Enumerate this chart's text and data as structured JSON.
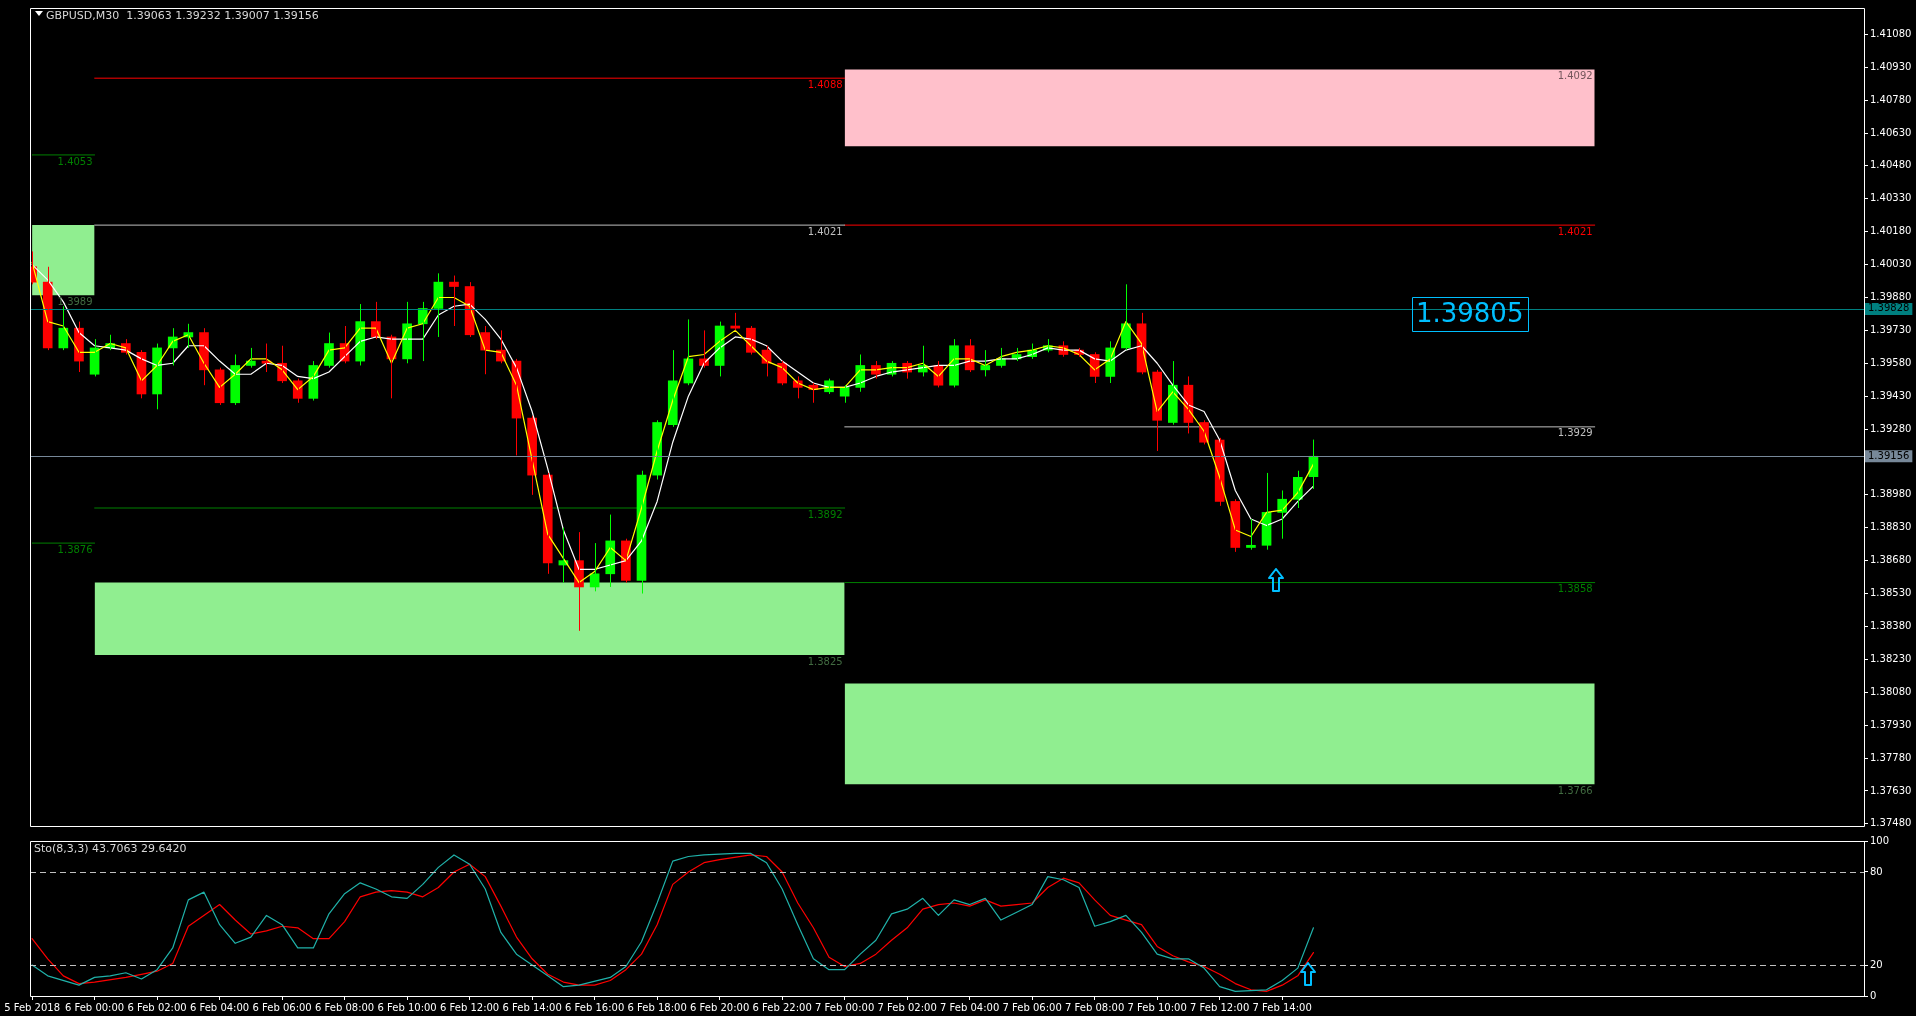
{
  "chart_data": [
    {
      "type": "candlestick",
      "title": "GBPUSD,M30  1.39063 1.39232 1.39007 1.39156",
      "x": [
        "2018-02-05T22:00",
        "2018-02-05T22:30",
        "2018-02-05T23:00",
        "2018-02-05T23:30",
        "2018-02-06T00:00",
        "2018-02-06T00:30",
        "2018-02-06T01:00",
        "2018-02-06T01:30",
        "2018-02-06T02:00",
        "2018-02-06T02:30",
        "2018-02-06T03:00",
        "2018-02-06T03:30",
        "2018-02-06T04:00",
        "2018-02-06T04:30",
        "2018-02-06T05:00",
        "2018-02-06T05:30",
        "2018-02-06T06:00",
        "2018-02-06T06:30",
        "2018-02-06T07:00",
        "2018-02-06T07:30",
        "2018-02-06T08:00",
        "2018-02-06T08:30",
        "2018-02-06T09:00",
        "2018-02-06T09:30",
        "2018-02-06T10:00",
        "2018-02-06T10:30",
        "2018-02-06T11:00",
        "2018-02-06T11:30",
        "2018-02-06T12:00",
        "2018-02-06T12:30",
        "2018-02-06T13:00",
        "2018-02-06T13:30",
        "2018-02-06T14:00",
        "2018-02-06T14:30",
        "2018-02-06T15:00",
        "2018-02-06T15:30",
        "2018-02-06T16:00",
        "2018-02-06T16:30",
        "2018-02-06T17:00",
        "2018-02-06T17:30",
        "2018-02-06T18:00",
        "2018-02-06T18:30",
        "2018-02-06T19:00",
        "2018-02-06T19:30",
        "2018-02-06T20:00",
        "2018-02-06T20:30",
        "2018-02-06T21:00",
        "2018-02-06T21:30",
        "2018-02-06T22:00",
        "2018-02-06T22:30",
        "2018-02-06T23:00",
        "2018-02-06T23:30",
        "2018-02-07T00:00",
        "2018-02-07T00:30",
        "2018-02-07T01:00",
        "2018-02-07T01:30",
        "2018-02-07T02:00",
        "2018-02-07T02:30",
        "2018-02-07T03:00",
        "2018-02-07T03:30",
        "2018-02-07T04:00",
        "2018-02-07T04:30",
        "2018-02-07T05:00",
        "2018-02-07T05:30",
        "2018-02-07T06:00",
        "2018-02-07T06:30",
        "2018-02-07T07:00",
        "2018-02-07T07:30",
        "2018-02-07T08:00",
        "2018-02-07T08:30",
        "2018-02-07T09:00",
        "2018-02-07T09:30",
        "2018-02-07T10:00",
        "2018-02-07T10:30",
        "2018-02-07T11:00",
        "2018-02-07T11:30",
        "2018-02-07T12:00",
        "2018-02-07T12:30",
        "2018-02-07T13:00",
        "2018-02-07T13:30",
        "2018-02-07T14:00",
        "2018-02-07T14:30",
        "2018-02-07T15:00"
      ],
      "xlim": [
        "2018-02-05T21:56",
        "2018-02-08T08:37"
      ],
      "ylim": [
        1.3747,
        1.412
      ],
      "yticks": [
        {
          "value": 1.4108,
          "label": "1.41080"
        },
        {
          "value": 1.4093,
          "label": "1.40930"
        },
        {
          "value": 1.4078,
          "label": "1.40780"
        },
        {
          "value": 1.4063,
          "label": "1.40630"
        },
        {
          "value": 1.4048,
          "label": "1.40480"
        },
        {
          "value": 1.4033,
          "label": "1.40330"
        },
        {
          "value": 1.4018,
          "label": "1.40180"
        },
        {
          "value": 1.4003,
          "label": "1.40030"
        },
        {
          "value": 1.3988,
          "label": "1.39880"
        },
        {
          "value": 1.3973,
          "label": "1.39730"
        },
        {
          "value": 1.3958,
          "label": "1.39580"
        },
        {
          "value": 1.3943,
          "label": "1.39430"
        },
        {
          "value": 1.3928,
          "label": "1.39280"
        },
        {
          "value": 1.3898,
          "label": "1.38980"
        },
        {
          "value": 1.3883,
          "label": "1.38830"
        },
        {
          "value": 1.3868,
          "label": "1.38680"
        },
        {
          "value": 1.3853,
          "label": "1.38530"
        },
        {
          "value": 1.3838,
          "label": "1.38380"
        },
        {
          "value": 1.3823,
          "label": "1.38230"
        },
        {
          "value": 1.3808,
          "label": "1.38080"
        },
        {
          "value": 1.3793,
          "label": "1.37930"
        },
        {
          "value": 1.3778,
          "label": "1.37780"
        },
        {
          "value": 1.3763,
          "label": "1.37630"
        },
        {
          "value": 1.3748,
          "label": "1.37480"
        }
      ],
      "tick_labels": "y",
      "series": [
        {
          "type": "line",
          "x": [
            "2018-02-05T22:00",
            "2018-02-06T00:00"
          ],
          "values": [
            null,
            null
          ],
          "upper": [
            1.4021,
            1.4021
          ],
          "lower": [
            1.3989,
            1.3989
          ],
          "color": "#90ee90"
        },
        {
          "type": "line",
          "x": [
            "2018-02-06T00:00",
            "2018-02-07T00:00"
          ],
          "values": [
            null,
            null
          ],
          "upper": [
            1.3858,
            1.3858
          ],
          "lower": [
            1.3825,
            1.3825
          ],
          "color": "#90ee90"
        },
        {
          "type": "line",
          "x": [
            "2018-02-07T00:00",
            "2018-02-08T00:00"
          ],
          "values": [
            null,
            null
          ],
          "upper": [
            1.4092,
            1.4092
          ],
          "lower": [
            1.4057,
            1.4057
          ],
          "color": "#ffc0cb"
        },
        {
          "type": "line",
          "x": [
            "2018-02-07T00:00",
            "2018-02-08T00:00"
          ],
          "values": [
            null,
            null
          ],
          "upper": [
            1.3812,
            1.3812
          ],
          "lower": [
            1.3766,
            1.3766
          ],
          "color": "#90ee90"
        },
        {
          "type": "line",
          "x": [
            "2018-02-06T00:00",
            "2018-02-07T00:00"
          ],
          "values": [
            1.4088,
            1.4088
          ],
          "color": "#ff0000"
        },
        {
          "type": "line",
          "x": [
            "2018-02-05T22:00",
            "2018-02-06T00:00"
          ],
          "values": [
            1.4053,
            1.4053
          ],
          "color": "#008000"
        },
        {
          "type": "line",
          "x": [
            "2018-02-06T00:00",
            "2018-02-07T00:00"
          ],
          "values": [
            1.4021,
            1.4021
          ],
          "color": "#c0c0c0"
        },
        {
          "type": "line",
          "x": [
            "2018-02-07T00:00",
            "2018-02-08T00:00"
          ],
          "values": [
            1.4021,
            1.4021
          ],
          "color": "#ff0000"
        },
        {
          "type": "line",
          "x": [
            "2018-02-07T00:00",
            "2018-02-08T00:00"
          ],
          "values": [
            1.3929,
            1.3929
          ],
          "color": "#c0c0c0"
        },
        {
          "type": "line",
          "x": [
            "2018-02-06T00:00",
            "2018-02-07T00:00"
          ],
          "values": [
            1.3892,
            1.3892
          ],
          "color": "#008000"
        },
        {
          "type": "line",
          "x": [
            "2018-02-05T22:00",
            "2018-02-06T00:00"
          ],
          "values": [
            1.3876,
            1.3876
          ],
          "color": "#008000"
        },
        {
          "type": "line",
          "x": [
            "2018-02-07T00:00",
            "2018-02-08T00:00"
          ],
          "values": [
            1.3858,
            1.3858
          ],
          "color": "#008000"
        },
        {
          "ohlc": [
            [
              1.4002,
              1.4009,
              1.3994,
              1.3995
            ],
            [
              1.3995,
              1.4002,
              1.3964,
              1.3965
            ],
            [
              1.3965,
              1.3984,
              1.3964,
              1.3974
            ],
            [
              1.3974,
              1.3977,
              1.3954,
              1.3959
            ],
            [
              1.3953,
              1.3969,
              1.3952,
              1.3965
            ],
            [
              1.3965,
              1.3971,
              1.3964,
              1.3967
            ],
            [
              1.3967,
              1.3969,
              1.3962,
              1.3963
            ],
            [
              1.3963,
              1.3964,
              1.3942,
              1.3944
            ],
            [
              1.3944,
              1.3967,
              1.3937,
              1.3965
            ],
            [
              1.3965,
              1.3974,
              1.3957,
              1.397
            ],
            [
              1.397,
              1.3976,
              1.3965,
              1.3972
            ],
            [
              1.3972,
              1.3974,
              1.3948,
              1.3955
            ],
            [
              1.3955,
              1.3956,
              1.3939,
              1.394
            ],
            [
              1.394,
              1.3962,
              1.3939,
              1.3957
            ],
            [
              1.3957,
              1.3965,
              1.3956,
              1.3959
            ],
            [
              1.3959,
              1.3967,
              1.3954,
              1.3958
            ],
            [
              1.3958,
              1.3966,
              1.3949,
              1.395
            ],
            [
              1.395,
              1.3951,
              1.394,
              1.3942
            ],
            [
              1.3942,
              1.3959,
              1.3941,
              1.3957
            ],
            [
              1.3957,
              1.3972,
              1.3956,
              1.3967
            ],
            [
              1.3967,
              1.3975,
              1.3958,
              1.3959
            ],
            [
              1.3959,
              1.3985,
              1.3957,
              1.3977
            ],
            [
              1.3977,
              1.3986,
              1.3969,
              1.397
            ],
            [
              1.397,
              1.3971,
              1.3942,
              1.396
            ],
            [
              1.396,
              1.3986,
              1.3958,
              1.3976
            ],
            [
              1.3976,
              1.3986,
              1.3959,
              1.3983
            ],
            [
              1.3983,
              1.3999,
              1.397,
              1.3995
            ],
            [
              1.3995,
              1.3998,
              1.3975,
              1.3993
            ],
            [
              1.3993,
              1.3995,
              1.397,
              1.3971
            ],
            [
              1.3972,
              1.3975,
              1.3953,
              1.3964
            ],
            [
              1.3964,
              1.3973,
              1.3958,
              1.3959
            ],
            [
              1.3959,
              1.396,
              1.3916,
              1.3933
            ],
            [
              1.3933,
              1.3934,
              1.3898,
              1.3907
            ],
            [
              1.3907,
              1.3908,
              1.3862,
              1.3867
            ],
            [
              1.3866,
              1.3883,
              1.3858,
              1.3868
            ],
            [
              1.3868,
              1.3881,
              1.3836,
              1.3856
            ],
            [
              1.3856,
              1.3876,
              1.3854,
              1.3862
            ],
            [
              1.3862,
              1.3889,
              1.3856,
              1.3877
            ],
            [
              1.3877,
              1.3878,
              1.3858,
              1.3859
            ],
            [
              1.3859,
              1.3909,
              1.3853,
              1.3907
            ],
            [
              1.3907,
              1.3932,
              1.3905,
              1.3931
            ],
            [
              1.393,
              1.3964,
              1.3929,
              1.395
            ],
            [
              1.3949,
              1.3978,
              1.3948,
              1.396
            ],
            [
              1.396,
              1.3973,
              1.3956,
              1.3957
            ],
            [
              1.3957,
              1.3977,
              1.3952,
              1.3975
            ],
            [
              1.3975,
              1.3981,
              1.3973,
              1.3974
            ],
            [
              1.3974,
              1.3975,
              1.3962,
              1.3963
            ],
            [
              1.3964,
              1.3966,
              1.3952,
              1.3958
            ],
            [
              1.3958,
              1.3959,
              1.3948,
              1.3949
            ],
            [
              1.395,
              1.3952,
              1.3942,
              1.3947
            ],
            [
              1.3948,
              1.3949,
              1.394,
              1.3946
            ],
            [
              1.3945,
              1.3951,
              1.3944,
              1.395
            ],
            [
              1.3943,
              1.3948,
              1.394,
              1.3947
            ],
            [
              1.3947,
              1.3962,
              1.3945,
              1.3957
            ],
            [
              1.3957,
              1.3959,
              1.3951,
              1.3953
            ],
            [
              1.3953,
              1.3959,
              1.3952,
              1.3958
            ],
            [
              1.3958,
              1.3959,
              1.3951,
              1.3954
            ],
            [
              1.3954,
              1.3966,
              1.3952,
              1.3957
            ],
            [
              1.3957,
              1.3959,
              1.3947,
              1.3948
            ],
            [
              1.3948,
              1.3969,
              1.3947,
              1.3966
            ],
            [
              1.3966,
              1.3969,
              1.3954,
              1.3955
            ],
            [
              1.3955,
              1.3964,
              1.3952,
              1.3957
            ],
            [
              1.3957,
              1.3965,
              1.3956,
              1.396
            ],
            [
              1.396,
              1.3965,
              1.3959,
              1.3962
            ],
            [
              1.3961,
              1.3967,
              1.396,
              1.3964
            ],
            [
              1.3964,
              1.3969,
              1.3963,
              1.3966
            ],
            [
              1.3966,
              1.3968,
              1.3961,
              1.3962
            ],
            [
              1.3964,
              1.3965,
              1.3961,
              1.3962
            ],
            [
              1.3962,
              1.3963,
              1.3949,
              1.3952
            ],
            [
              1.3952,
              1.3968,
              1.3949,
              1.3965
            ],
            [
              1.3965,
              1.3994,
              1.3964,
              1.3976
            ],
            [
              1.3976,
              1.3981,
              1.3953,
              1.3954
            ],
            [
              1.3954,
              1.3955,
              1.3918,
              1.3932
            ],
            [
              1.3931,
              1.3959,
              1.393,
              1.3948
            ],
            [
              1.3948,
              1.3952,
              1.3926,
              1.3931
            ],
            [
              1.3931,
              1.3932,
              1.3921,
              1.3922
            ],
            [
              1.3923,
              1.3924,
              1.3893,
              1.3895
            ],
            [
              1.3895,
              1.3896,
              1.3872,
              1.3874
            ],
            [
              1.3874,
              1.3887,
              1.3873,
              1.3875
            ],
            [
              1.3875,
              1.3908,
              1.3873,
              1.389
            ],
            [
              1.389,
              1.39,
              1.3878,
              1.3896
            ],
            [
              1.3896,
              1.3909,
              1.3892,
              1.3906
            ],
            [
              1.39063,
              1.39232,
              1.39007,
              1.39156
            ]
          ],
          "colors": [
            "#ff0000",
            "#ff0000",
            "#00ff00",
            "#ff0000",
            "#00ff00",
            "#00ff00",
            "#ff0000",
            "#ff0000",
            "#00ff00",
            "#00ff00",
            "#00ff00",
            "#ff0000",
            "#ff0000",
            "#00ff00",
            "#00ff00",
            "#ff0000",
            "#ff0000",
            "#ff0000",
            "#00ff00",
            "#00ff00",
            "#ff0000",
            "#00ff00",
            "#ff0000",
            "#ff0000",
            "#00ff00",
            "#00ff00",
            "#00ff00",
            "#ff0000",
            "#ff0000",
            "#ff0000",
            "#ff0000",
            "#ff0000",
            "#ff0000",
            "#ff0000",
            "#00ff00",
            "#ff0000",
            "#00ff00",
            "#00ff00",
            "#ff0000",
            "#00ff00",
            "#00ff00",
            "#00ff00",
            "#00ff00",
            "#ff0000",
            "#00ff00",
            "#ff0000",
            "#ff0000",
            "#ff0000",
            "#ff0000",
            "#ff0000",
            "#ff0000",
            "#00ff00",
            "#00ff00",
            "#00ff00",
            "#ff0000",
            "#00ff00",
            "#ff0000",
            "#00ff00",
            "#ff0000",
            "#00ff00",
            "#ff0000",
            "#00ff00",
            "#00ff00",
            "#00ff00",
            "#00ff00",
            "#00ff00",
            "#ff0000",
            "#ff0000",
            "#ff0000",
            "#00ff00",
            "#00ff00",
            "#ff0000",
            "#ff0000",
            "#00ff00",
            "#ff0000",
            "#ff0000",
            "#ff0000",
            "#ff0000",
            "#00ff00",
            "#00ff00",
            "#00ff00",
            "#00ff00",
            "#00ff00"
          ]
        },
        {
          "type": "line",
          "color": "#ffff00",
          "values": [
            1.4004,
            1.3977,
            1.3975,
            1.3963,
            1.3963,
            1.3967,
            1.3965,
            1.395,
            1.3957,
            1.3968,
            1.3971,
            1.3958,
            1.3947,
            1.3953,
            1.396,
            1.396,
            1.3955,
            1.3946,
            1.3952,
            1.3964,
            1.3965,
            1.3974,
            1.3974,
            1.3958,
            1.3974,
            1.3976,
            1.3988,
            1.3988,
            1.3984,
            1.3964,
            1.3963,
            1.3948,
            1.3914,
            1.388,
            1.3869,
            1.3858,
            1.3863,
            1.3874,
            1.3868,
            1.3892,
            1.3918,
            1.3941,
            1.3961,
            1.3962,
            1.3968,
            1.3973,
            1.3966,
            1.3959,
            1.3956,
            1.3949,
            1.3946,
            1.3947,
            1.3947,
            1.3955,
            1.3955,
            1.3956,
            1.3956,
            1.3958,
            1.3952,
            1.396,
            1.396,
            1.3957,
            1.3961,
            1.3963,
            1.3964,
            1.3966,
            1.3965,
            1.3962,
            1.3955,
            1.396,
            1.3977,
            1.3967,
            1.3936,
            1.3945,
            1.3937,
            1.3927,
            1.3906,
            1.3882,
            1.3879,
            1.389,
            1.3891,
            1.3899,
            1.3912
          ]
        },
        {
          "type": "line",
          "color": "#ffffff",
          "values": [
            1.4003,
            1.3996,
            1.3986,
            1.3972,
            1.3966,
            1.3965,
            1.3964,
            1.396,
            1.3957,
            1.3958,
            1.3966,
            1.3966,
            1.3959,
            1.3953,
            1.3953,
            1.3958,
            1.3957,
            1.3952,
            1.3951,
            1.3954,
            1.3961,
            1.3968,
            1.397,
            1.3969,
            1.3969,
            1.3969,
            1.398,
            1.3984,
            1.3985,
            1.3978,
            1.3969,
            1.3956,
            1.3936,
            1.391,
            1.3882,
            1.3864,
            1.3864,
            1.3866,
            1.3868,
            1.3877,
            1.3895,
            1.3922,
            1.3943,
            1.3958,
            1.3965,
            1.397,
            1.3969,
            1.3966,
            1.3959,
            1.3954,
            1.3949,
            1.3947,
            1.3947,
            1.3949,
            1.3952,
            1.3954,
            1.3955,
            1.3956,
            1.3957,
            1.3957,
            1.3959,
            1.3959,
            1.396,
            1.396,
            1.3962,
            1.3965,
            1.3964,
            1.3964,
            1.396,
            1.3959,
            1.3964,
            1.3966,
            1.3958,
            1.3948,
            1.3939,
            1.3936,
            1.3923,
            1.39,
            1.3887,
            1.3884,
            1.3887,
            1.3895,
            1.3902
          ]
        }
      ],
      "ref_lines": [
        {
          "axis": "y",
          "value": 1.39828,
          "label": "1.39828",
          "color": "#008080"
        },
        {
          "axis": "y",
          "value": 1.39156,
          "label": "1.39156",
          "color": "#778899"
        }
      ],
      "annotations": [
        {
          "text": "1.4088",
          "x": "2018-02-07T00:00",
          "y": 1.4088
        },
        {
          "text": "1.4053",
          "x": "2018-02-06T00:00",
          "y": 1.4053
        },
        {
          "text": "1.4021",
          "x": "2018-02-07T00:00",
          "y": 1.4021
        },
        {
          "text": "1.4092",
          "x": "2018-02-08T00:00",
          "y": 1.4092
        },
        {
          "text": "1.4021",
          "x": "2018-02-08T00:00",
          "y": 1.4021
        },
        {
          "text": "1.3989",
          "x": "2018-02-06T00:00",
          "y": 1.3989
        },
        {
          "text": "1.39805",
          "x": "2018-02-07T20:00",
          "y": 1.39805
        },
        {
          "text": "1.3929",
          "x": "2018-02-08T00:00",
          "y": 1.3929
        },
        {
          "text": "1.3892",
          "x": "2018-02-07T00:00",
          "y": 1.3892
        },
        {
          "text": "1.3876",
          "x": "2018-02-06T00:00",
          "y": 1.3876
        },
        {
          "text": "1.3858",
          "x": "2018-02-08T00:00",
          "y": 1.3858
        },
        {
          "text": "1.3825",
          "x": "2018-02-07T00:00",
          "y": 1.3825
        },
        {
          "text": "1.3766",
          "x": "2018-02-08T00:00",
          "y": 1.3766
        }
      ]
    },
    {
      "type": "line",
      "title": "Sto(8,3,3) 43.7063 29.6420",
      "xlim": [
        "2018-02-05T21:56",
        "2018-02-08T08:37"
      ],
      "xticks": [
        {
          "value": "2018-02-05T22:00",
          "label": "5 Feb 2018"
        },
        {
          "value": "2018-02-06T00:00",
          "label": "6 Feb 00:00"
        },
        {
          "value": "2018-02-06T02:00",
          "label": "6 Feb 02:00"
        },
        {
          "value": "2018-02-06T04:00",
          "label": "6 Feb 04:00"
        },
        {
          "value": "2018-02-06T06:00",
          "label": "6 Feb 06:00"
        },
        {
          "value": "2018-02-06T08:00",
          "label": "6 Feb 08:00"
        },
        {
          "value": "2018-02-06T10:00",
          "label": "6 Feb 10:00"
        },
        {
          "value": "2018-02-06T12:00",
          "label": "6 Feb 12:00"
        },
        {
          "value": "2018-02-06T14:00",
          "label": "6 Feb 14:00"
        },
        {
          "value": "2018-02-06T16:00",
          "label": "6 Feb 16:00"
        },
        {
          "value": "2018-02-06T18:00",
          "label": "6 Feb 18:00"
        },
        {
          "value": "2018-02-06T20:00",
          "label": "6 Feb 20:00"
        },
        {
          "value": "2018-02-06T22:00",
          "label": "6 Feb 22:00"
        },
        {
          "value": "2018-02-07T00:00",
          "label": "7 Feb 00:00"
        },
        {
          "value": "2018-02-07T02:00",
          "label": "7 Feb 02:00"
        },
        {
          "value": "2018-02-07T04:00",
          "label": "7 Feb 04:00"
        },
        {
          "value": "2018-02-07T06:00",
          "label": "7 Feb 06:00"
        },
        {
          "value": "2018-02-07T08:00",
          "label": "7 Feb 08:00"
        },
        {
          "value": "2018-02-07T10:00",
          "label": "7 Feb 10:00"
        },
        {
          "value": "2018-02-07T12:00",
          "label": "7 Feb 12:00"
        },
        {
          "value": "2018-02-07T14:00",
          "label": "7 Feb 14:00"
        }
      ],
      "ylim": [
        0,
        100
      ],
      "yticks": [
        0,
        20,
        80,
        100
      ],
      "series": [
        {
          "color": "#20b2aa",
          "x": [
            "2018-02-05T22:00",
            "2018-02-05T22:30",
            "2018-02-05T23:30",
            "2018-02-06T00:00",
            "2018-02-06T00:30",
            "2018-02-06T01:00",
            "2018-02-06T01:30",
            "2018-02-06T02:00",
            "2018-02-06T02:30",
            "2018-02-06T03:00",
            "2018-02-06T03:30",
            "2018-02-06T04:00",
            "2018-02-06T04:30",
            "2018-02-06T05:00",
            "2018-02-06T05:30",
            "2018-02-06T06:00",
            "2018-02-06T06:30",
            "2018-02-06T07:00",
            "2018-02-06T07:30",
            "2018-02-06T08:00",
            "2018-02-06T08:30",
            "2018-02-06T09:00",
            "2018-02-06T09:30",
            "2018-02-06T10:00",
            "2018-02-06T10:30",
            "2018-02-06T11:00",
            "2018-02-06T11:30",
            "2018-02-06T12:00",
            "2018-02-06T12:30",
            "2018-02-06T13:00",
            "2018-02-06T13:30",
            "2018-02-06T14:30",
            "2018-02-06T15:00",
            "2018-02-06T15:30",
            "2018-02-06T16:30",
            "2018-02-06T17:00",
            "2018-02-06T17:30",
            "2018-02-06T18:00",
            "2018-02-06T18:30",
            "2018-02-06T19:00",
            "2018-02-06T19:30",
            "2018-02-06T20:30",
            "2018-02-06T21:00",
            "2018-02-06T21:30",
            "2018-02-06T22:00",
            "2018-02-06T22:30",
            "2018-02-06T23:00",
            "2018-02-06T23:30",
            "2018-02-07T00:00",
            "2018-02-07T00:30",
            "2018-02-07T01:00",
            "2018-02-07T01:30",
            "2018-02-07T02:00",
            "2018-02-07T02:30",
            "2018-02-07T03:00",
            "2018-02-07T03:30",
            "2018-02-07T04:00",
            "2018-02-07T04:30",
            "2018-02-07T05:00",
            "2018-02-07T06:00",
            "2018-02-07T06:30",
            "2018-02-07T07:00",
            "2018-02-07T07:30",
            "2018-02-07T08:00",
            "2018-02-07T08:30",
            "2018-02-07T09:00",
            "2018-02-07T09:30",
            "2018-02-07T10:00",
            "2018-02-07T10:30",
            "2018-02-07T11:00",
            "2018-02-07T11:30",
            "2018-02-07T12:00",
            "2018-02-07T12:30",
            "2018-02-07T13:30",
            "2018-02-07T14:00",
            "2018-02-07T14:30",
            "2018-02-07T15:00"
          ],
          "values": [
            20,
            13,
            7,
            12,
            13,
            15,
            11,
            17,
            31,
            62,
            67,
            46,
            34,
            38,
            52,
            46,
            31,
            31,
            53,
            66,
            73,
            69,
            64,
            63,
            72,
            83,
            91,
            85,
            69,
            41,
            27,
            13,
            6,
            7,
            12,
            19,
            35,
            60,
            87,
            90,
            91,
            92,
            92,
            86,
            69,
            46,
            24,
            17,
            17,
            27,
            36,
            53,
            56,
            63,
            52,
            62,
            59,
            63,
            49,
            59,
            77,
            75,
            70,
            45,
            48,
            52,
            41,
            27,
            24,
            24,
            18,
            6,
            3,
            4,
            10,
            18,
            44
          ]
        },
        {
          "color": "#ff0000",
          "x": [
            "2018-02-05T22:00",
            "2018-02-05T22:30",
            "2018-02-05T23:00",
            "2018-02-05T23:30",
            "2018-02-06T00:00",
            "2018-02-06T01:00",
            "2018-02-06T01:30",
            "2018-02-06T02:00",
            "2018-02-06T02:30",
            "2018-02-06T03:00",
            "2018-02-06T04:00",
            "2018-02-06T04:30",
            "2018-02-06T05:00",
            "2018-02-06T05:30",
            "2018-02-06T06:00",
            "2018-02-06T06:30",
            "2018-02-06T07:00",
            "2018-02-06T07:30",
            "2018-02-06T08:00",
            "2018-02-06T08:30",
            "2018-02-06T09:00",
            "2018-02-06T09:30",
            "2018-02-06T10:00",
            "2018-02-06T10:30",
            "2018-02-06T11:00",
            "2018-02-06T11:30",
            "2018-02-06T12:00",
            "2018-02-06T12:30",
            "2018-02-06T13:00",
            "2018-02-06T13:30",
            "2018-02-06T14:00",
            "2018-02-06T14:30",
            "2018-02-06T15:00",
            "2018-02-06T15:30",
            "2018-02-06T16:00",
            "2018-02-06T16:30",
            "2018-02-06T17:00",
            "2018-02-06T17:30",
            "2018-02-06T18:00",
            "2018-02-06T18:30",
            "2018-02-06T19:00",
            "2018-02-06T19:30",
            "2018-02-06T20:00",
            "2018-02-06T21:00",
            "2018-02-06T21:30",
            "2018-02-06T22:00",
            "2018-02-06T22:30",
            "2018-02-06T23:00",
            "2018-02-06T23:30",
            "2018-02-07T00:00",
            "2018-02-07T00:30",
            "2018-02-07T01:00",
            "2018-02-07T01:30",
            "2018-02-07T02:00",
            "2018-02-07T02:30",
            "2018-02-07T03:00",
            "2018-02-07T03:30",
            "2018-02-07T04:00",
            "2018-02-07T04:30",
            "2018-02-07T05:00",
            "2018-02-07T05:30",
            "2018-02-07T06:00",
            "2018-02-07T06:30",
            "2018-02-07T07:00",
            "2018-02-07T07:30",
            "2018-02-07T08:00",
            "2018-02-07T08:30",
            "2018-02-07T09:00",
            "2018-02-07T09:30",
            "2018-02-07T10:00",
            "2018-02-07T10:30",
            "2018-02-07T11:00",
            "2018-02-07T11:30",
            "2018-02-07T12:00",
            "2018-02-07T12:30",
            "2018-02-07T13:00",
            "2018-02-07T13:30",
            "2018-02-07T14:00",
            "2018-02-07T14:30",
            "2018-02-07T15:00"
          ],
          "values": [
            37,
            24,
            13,
            8,
            9,
            12,
            14,
            16,
            21,
            45,
            59,
            49,
            40,
            42,
            45,
            44,
            37,
            37,
            48,
            64,
            67,
            68,
            67,
            64,
            70,
            80,
            85,
            77,
            58,
            38,
            24,
            14,
            9,
            7,
            7,
            10,
            17,
            27,
            46,
            72,
            80,
            86,
            88,
            91,
            90,
            80,
            60,
            44,
            25,
            19,
            21,
            27,
            36,
            44,
            56,
            59,
            60,
            58,
            62,
            58,
            59,
            60,
            70,
            76,
            73,
            62,
            52,
            49,
            46,
            32,
            26,
            22,
            19,
            14,
            8,
            4,
            3,
            7,
            13,
            28
          ]
        }
      ],
      "ref_lines": [
        {
          "axis": "y",
          "value": 80,
          "color": "#c0c0c0",
          "line_style": "dashed"
        },
        {
          "axis": "y",
          "value": 20,
          "color": "#c0c0c0",
          "line_style": "dashed"
        }
      ]
    }
  ]
}
